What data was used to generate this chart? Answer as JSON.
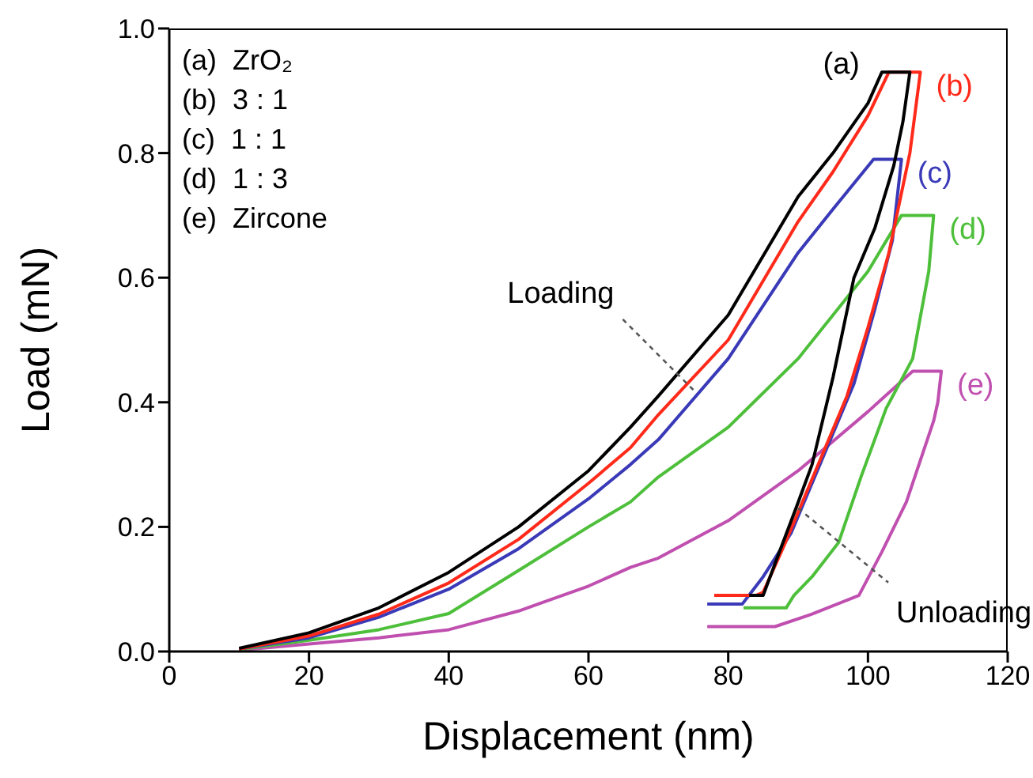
{
  "chart_data": {
    "type": "line",
    "xlabel": "Displacement (nm)",
    "ylabel": "Load (mN)",
    "xlim": [
      0,
      120
    ],
    "xticks": [
      0,
      20,
      40,
      60,
      80,
      100,
      120
    ],
    "ylim": [
      0,
      1
    ],
    "yticks": [
      {
        "value": 0,
        "label": "0.0"
      },
      {
        "value": 0.2,
        "label": "0.2"
      },
      {
        "value": 0.4,
        "label": "0.4"
      },
      {
        "value": 0.6,
        "label": "0.6"
      },
      {
        "value": 0.8,
        "label": "0.8"
      },
      {
        "value": 1,
        "label": "1.0"
      }
    ],
    "grid": false,
    "legend": false,
    "marker": "none",
    "line_style": "solid",
    "annotations": [
      "(a)  ZrO₂",
      "(b)  3 : 1",
      "(c)  1 : 1",
      "(d)  1 : 3",
      "(e)  Zircone",
      {
        "text": "Loading",
        "x": 75,
        "y": 0.42
      },
      {
        "text": "Unloading",
        "x": 90,
        "y": 0.23
      }
    ],
    "series": [
      {
        "name": "(a)",
        "color": "#000000",
        "x": [
          10,
          20,
          30,
          40,
          50,
          60,
          66,
          70,
          80,
          90,
          95,
          100,
          102,
          106,
          105,
          103.7,
          101,
          98,
          95,
          92,
          89.7,
          87,
          85,
          83
        ],
        "values": [
          0.005,
          0.03,
          0.07,
          0.127,
          0.2,
          0.29,
          0.36,
          0.41,
          0.54,
          0.73,
          0.8,
          0.88,
          0.93,
          0.93,
          0.85,
          0.78,
          0.68,
          0.6,
          0.44,
          0.3,
          0.23,
          0.15,
          0.09,
          0.09
        ]
      },
      {
        "name": "(b)",
        "color": "#ff2a1a",
        "x": [
          10,
          20,
          30,
          40,
          50,
          60,
          66,
          70,
          80,
          90,
          95,
          100,
          103,
          107.5,
          106,
          103,
          100,
          97,
          94,
          91,
          88,
          85,
          84,
          78
        ],
        "values": [
          0.004,
          0.025,
          0.06,
          0.11,
          0.18,
          0.27,
          0.327,
          0.38,
          0.5,
          0.69,
          0.77,
          0.86,
          0.93,
          0.93,
          0.8,
          0.64,
          0.52,
          0.41,
          0.33,
          0.25,
          0.17,
          0.095,
          0.09,
          0.09
        ]
      },
      {
        "name": "(c)",
        "color": "#3a3ab8",
        "x": [
          10,
          20,
          30,
          40,
          50,
          60,
          66,
          70,
          80,
          90,
          95,
          100.8,
          104.8,
          103.5,
          101,
          98,
          95,
          92,
          89,
          85,
          82,
          77
        ],
        "values": [
          0.004,
          0.022,
          0.055,
          0.1,
          0.165,
          0.245,
          0.3,
          0.34,
          0.47,
          0.64,
          0.71,
          0.79,
          0.79,
          0.66,
          0.55,
          0.43,
          0.35,
          0.27,
          0.19,
          0.12,
          0.076,
          0.076
        ]
      },
      {
        "name": "(d)",
        "color": "#4dbf3a",
        "x": [
          10,
          20,
          30,
          40,
          50,
          60,
          66,
          70,
          80,
          90,
          100,
          104.8,
          109.4,
          108.7,
          106.4,
          102.6,
          99,
          95.8,
          92,
          89.4,
          88.3,
          82.2
        ],
        "values": [
          0.003,
          0.018,
          0.035,
          0.061,
          0.13,
          0.2,
          0.24,
          0.28,
          0.36,
          0.47,
          0.61,
          0.7,
          0.7,
          0.61,
          0.47,
          0.39,
          0.28,
          0.175,
          0.12,
          0.09,
          0.07,
          0.07
        ]
      },
      {
        "name": "(e)",
        "color": "#c050b0",
        "x": [
          10,
          20,
          30,
          40,
          50,
          60,
          66,
          70,
          80,
          90,
          100,
          106.4,
          110.5,
          110,
          109.4,
          105.5,
          102,
          98.7,
          92,
          86.7,
          77
        ],
        "values": [
          0.002,
          0.012,
          0.022,
          0.035,
          0.065,
          0.105,
          0.135,
          0.15,
          0.21,
          0.29,
          0.385,
          0.45,
          0.45,
          0.4,
          0.37,
          0.24,
          0.16,
          0.09,
          0.06,
          0.04,
          0.04
        ]
      }
    ]
  }
}
